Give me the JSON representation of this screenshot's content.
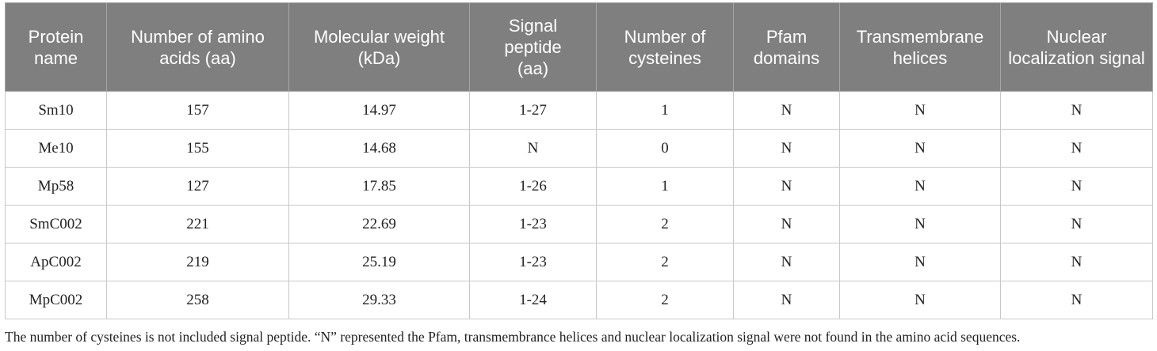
{
  "table": {
    "headers": [
      "Protein name",
      "Number of amino acids (aa)",
      "Molecular weight (kDa)",
      "Signal peptide (aa)",
      "Number of cysteines",
      "Pfam domains",
      "Transmembrane helices",
      "Nuclear localization signal"
    ],
    "header_lines": [
      [
        "Protein",
        "name"
      ],
      [
        "Number of amino",
        "acids (aa)"
      ],
      [
        "Molecular weight (kDa)"
      ],
      [
        "Signal",
        "peptide",
        "(aa)"
      ],
      [
        "Number of",
        "cysteines"
      ],
      [
        "Pfam",
        "domains"
      ],
      [
        "Transmembrane",
        "helices"
      ],
      [
        "Nuclear",
        "localization signal"
      ]
    ],
    "rows": [
      [
        "Sm10",
        "157",
        "14.97",
        "1-27",
        "1",
        "N",
        "N",
        "N"
      ],
      [
        "Me10",
        "155",
        "14.68",
        "N",
        "0",
        "N",
        "N",
        "N"
      ],
      [
        "Mp58",
        "127",
        "17.85",
        "1-26",
        "1",
        "N",
        "N",
        "N"
      ],
      [
        "SmC002",
        "221",
        "22.69",
        "1-23",
        "2",
        "N",
        "N",
        "N"
      ],
      [
        "ApC002",
        "219",
        "25.19",
        "1-23",
        "2",
        "N",
        "N",
        "N"
      ],
      [
        "MpC002",
        "258",
        "29.33",
        "1-24",
        "2",
        "N",
        "N",
        "N"
      ]
    ]
  },
  "footnote": "The number of cysteines is not included signal peptide. “N” represented the Pfam, transmembrance helices and nuclear localization signal were not found in the amino acid sequences.",
  "colors": {
    "header_bg": "#7f7f7f",
    "header_text": "#ffffff",
    "grid": "#c8c8c8",
    "body_text": "#222222"
  }
}
